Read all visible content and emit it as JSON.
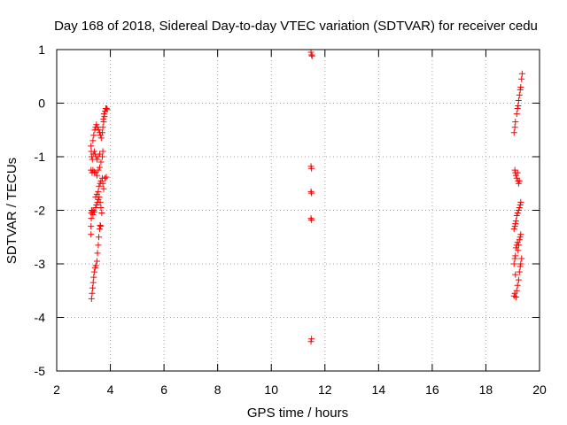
{
  "chart_data": {
    "type": "scatter",
    "title": "Day 168 of 2018, Sidereal Day-to-day VTEC variation (SDTVAR) for receiver cedu",
    "xlabel": "GPS time / hours",
    "ylabel": "SDTVAR / TECUs",
    "xlim": [
      2,
      20
    ],
    "ylim": [
      -5,
      1
    ],
    "xticks": [
      2,
      4,
      6,
      8,
      10,
      12,
      14,
      16,
      18,
      20
    ],
    "yticks": [
      -5,
      -4,
      -3,
      -2,
      -1,
      0,
      1
    ],
    "grid": true,
    "marker": "plus",
    "marker_color": "#ff0000",
    "series": [
      {
        "points": [
          [
            3.3,
            -3.65
          ],
          [
            3.32,
            -3.55
          ],
          [
            3.34,
            -3.45
          ],
          [
            3.36,
            -3.35
          ],
          [
            3.38,
            -3.25
          ],
          [
            3.4,
            -3.15
          ],
          [
            3.43,
            -3.07
          ],
          [
            3.46,
            -3.03
          ],
          [
            3.5,
            -2.95
          ],
          [
            3.52,
            -2.8
          ],
          [
            3.55,
            -2.65
          ],
          [
            3.57,
            -2.5
          ],
          [
            3.6,
            -2.35
          ],
          [
            3.62,
            -2.28
          ],
          [
            3.64,
            -2.3
          ],
          [
            3.28,
            -2.45
          ],
          [
            3.28,
            -2.3
          ],
          [
            3.29,
            -2.15
          ],
          [
            3.29,
            -2.05
          ],
          [
            3.3,
            -2.0
          ],
          [
            3.33,
            -2.02
          ],
          [
            3.35,
            -2.08
          ],
          [
            3.38,
            -2.0
          ],
          [
            3.4,
            -2.03
          ],
          [
            3.45,
            -1.95
          ],
          [
            3.48,
            -1.9
          ],
          [
            3.52,
            -1.85
          ],
          [
            3.55,
            -1.8
          ],
          [
            3.58,
            -1.75
          ],
          [
            3.62,
            -1.85
          ],
          [
            3.65,
            -1.95
          ],
          [
            3.68,
            -2.05
          ],
          [
            3.45,
            -1.75
          ],
          [
            3.5,
            -1.7
          ],
          [
            3.55,
            -1.65
          ],
          [
            3.58,
            -1.55
          ],
          [
            3.62,
            -1.5
          ],
          [
            3.65,
            -1.45
          ],
          [
            3.7,
            -1.4
          ],
          [
            3.72,
            -1.5
          ],
          [
            3.75,
            -1.6
          ],
          [
            3.8,
            -1.4
          ],
          [
            3.85,
            -1.38
          ],
          [
            3.28,
            -1.25
          ],
          [
            3.32,
            -1.3
          ],
          [
            3.35,
            -1.25
          ],
          [
            3.4,
            -1.28
          ],
          [
            3.45,
            -1.3
          ],
          [
            3.5,
            -1.35
          ],
          [
            3.55,
            -1.25
          ],
          [
            3.6,
            -1.2
          ],
          [
            3.65,
            -1.1
          ],
          [
            3.7,
            -1.0
          ],
          [
            3.72,
            -0.9
          ],
          [
            3.28,
            -0.8
          ],
          [
            3.29,
            -0.9
          ],
          [
            3.3,
            -1.0
          ],
          [
            3.33,
            -1.05
          ],
          [
            3.36,
            -0.95
          ],
          [
            3.4,
            -0.9
          ],
          [
            3.43,
            -0.95
          ],
          [
            3.46,
            -1.0
          ],
          [
            3.5,
            -1.05
          ],
          [
            3.55,
            -1.0
          ],
          [
            3.6,
            -0.95
          ],
          [
            3.35,
            -0.7
          ],
          [
            3.38,
            -0.6
          ],
          [
            3.42,
            -0.5
          ],
          [
            3.45,
            -0.45
          ],
          [
            3.48,
            -0.4
          ],
          [
            3.52,
            -0.45
          ],
          [
            3.56,
            -0.5
          ],
          [
            3.6,
            -0.55
          ],
          [
            3.63,
            -0.6
          ],
          [
            3.66,
            -0.65
          ],
          [
            3.7,
            -0.55
          ],
          [
            3.72,
            -0.45
          ],
          [
            3.75,
            -0.35
          ],
          [
            3.78,
            -0.25
          ],
          [
            3.8,
            -0.15
          ],
          [
            3.83,
            -0.1
          ],
          [
            3.86,
            -0.1
          ],
          [
            3.88,
            -0.12
          ],
          [
            3.76,
            -0.2
          ],
          [
            3.74,
            -0.3
          ],
          [
            11.48,
            0.95
          ],
          [
            11.5,
            0.9
          ],
          [
            11.52,
            0.88
          ],
          [
            11.48,
            -1.18
          ],
          [
            11.5,
            -1.22
          ],
          [
            11.48,
            -1.65
          ],
          [
            11.5,
            -1.68
          ],
          [
            11.48,
            -2.15
          ],
          [
            11.5,
            -2.18
          ],
          [
            11.48,
            -4.45
          ],
          [
            11.5,
            -4.4
          ],
          [
            19.05,
            -3.6
          ],
          [
            19.08,
            -3.55
          ],
          [
            19.12,
            -3.62
          ],
          [
            19.15,
            -3.5
          ],
          [
            19.18,
            -3.4
          ],
          [
            19.22,
            -3.3
          ],
          [
            19.25,
            -3.15
          ],
          [
            19.28,
            -3.05
          ],
          [
            19.3,
            -3.0
          ],
          [
            19.33,
            -2.9
          ],
          [
            19.1,
            -3.2
          ],
          [
            19.05,
            -3.0
          ],
          [
            19.08,
            -2.9
          ],
          [
            19.1,
            -2.85
          ],
          [
            19.12,
            -2.7
          ],
          [
            19.15,
            -2.65
          ],
          [
            19.18,
            -2.6
          ],
          [
            19.2,
            -2.75
          ],
          [
            19.22,
            -2.65
          ],
          [
            19.25,
            -2.55
          ],
          [
            19.28,
            -2.5
          ],
          [
            19.3,
            -2.45
          ],
          [
            19.05,
            -2.35
          ],
          [
            19.08,
            -2.3
          ],
          [
            19.1,
            -2.25
          ],
          [
            19.12,
            -2.2
          ],
          [
            19.15,
            -2.1
          ],
          [
            19.18,
            -2.05
          ],
          [
            19.22,
            -2.0
          ],
          [
            19.25,
            -1.95
          ],
          [
            19.28,
            -1.9
          ],
          [
            19.3,
            -1.85
          ],
          [
            19.08,
            -1.25
          ],
          [
            19.1,
            -1.3
          ],
          [
            19.12,
            -1.35
          ],
          [
            19.15,
            -1.4
          ],
          [
            19.18,
            -1.3
          ],
          [
            19.2,
            -1.45
          ],
          [
            19.22,
            -1.5
          ],
          [
            19.25,
            -1.45
          ],
          [
            19.05,
            -0.55
          ],
          [
            19.08,
            -0.45
          ],
          [
            19.1,
            -0.35
          ],
          [
            19.15,
            -0.2
          ],
          [
            19.18,
            -0.1
          ],
          [
            19.2,
            -0.05
          ],
          [
            19.22,
            0.05
          ],
          [
            19.25,
            0.15
          ],
          [
            19.28,
            0.25
          ],
          [
            19.3,
            0.3
          ],
          [
            19.33,
            0.45
          ],
          [
            19.35,
            0.55
          ]
        ]
      }
    ]
  }
}
